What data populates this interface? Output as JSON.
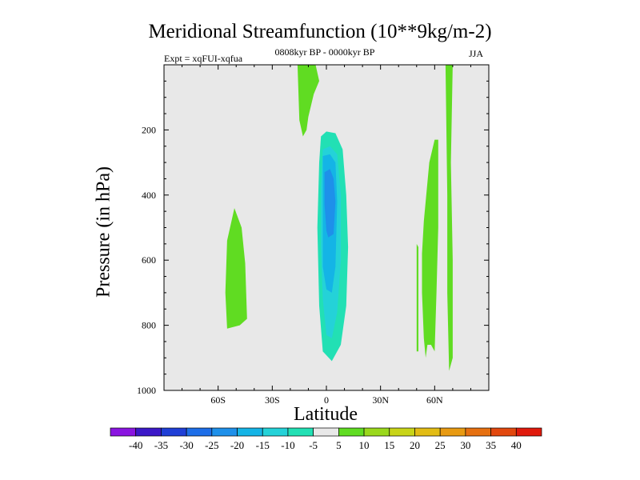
{
  "chart_data": {
    "type": "heatmap",
    "title": "Meridional Streamfunction (10**9kg/m-2)",
    "subtitle": "0808kyr BP - 0000kyr BP",
    "left_label": "Expt = xqFUI-xqfua",
    "right_label": "JJA",
    "xlabel": "Latitude",
    "ylabel": "Pressure (in hPa)",
    "xlim": [
      -90,
      90
    ],
    "ylim": [
      1000,
      0
    ],
    "x_ticks": [
      {
        "value": -60,
        "label": "60S"
      },
      {
        "value": -30,
        "label": "30S"
      },
      {
        "value": 0,
        "label": "0"
      },
      {
        "value": 30,
        "label": "30N"
      },
      {
        "value": 60,
        "label": "60N"
      }
    ],
    "y_ticks": [
      {
        "value": 200,
        "label": "200"
      },
      {
        "value": 400,
        "label": "400"
      },
      {
        "value": 600,
        "label": "600"
      },
      {
        "value": 800,
        "label": "800"
      },
      {
        "value": 1000,
        "label": "1000"
      }
    ],
    "background_color": "#e8e8e8",
    "colorbar": {
      "labels": [
        "-40",
        "-35",
        "-30",
        "-25",
        "-20",
        "-15",
        "-10",
        "-5",
        "5",
        "10",
        "15",
        "20",
        "25",
        "30",
        "35",
        "40"
      ],
      "colors": [
        "#8a14e0",
        "#3c18c8",
        "#1f3fd6",
        "#1d6ee8",
        "#1e90ea",
        "#14b4e6",
        "#24d2d8",
        "#22e0b4",
        "#e8e8e8",
        "#60dc22",
        "#9ad81c",
        "#c8d418",
        "#e2bc14",
        "#e89a12",
        "#e67010",
        "#e2480e",
        "#e01a0c"
      ]
    },
    "regions": [
      {
        "value": -5,
        "points": [
          [
            -82,
            0
          ],
          [
            -77,
            0
          ],
          [
            -76,
            400
          ],
          [
            -75,
            700
          ],
          [
            -76,
            800
          ],
          [
            -79,
            845
          ],
          [
            -81,
            790
          ],
          [
            -82,
            400
          ]
        ]
      },
      {
        "value": -5,
        "points": [
          [
            -70,
            0
          ],
          [
            -68,
            0
          ],
          [
            -68,
            400
          ],
          [
            -67,
            700
          ],
          [
            -68,
            800
          ],
          [
            -69,
            830
          ],
          [
            -70,
            760
          ],
          [
            -70,
            400
          ]
        ]
      },
      {
        "value": -5,
        "points": [
          [
            -64,
            520
          ],
          [
            -63,
            520
          ],
          [
            -63,
            820
          ],
          [
            -64,
            820
          ]
        ]
      },
      {
        "value": 5,
        "points": [
          [
            -55,
            540
          ],
          [
            -51,
            440
          ],
          [
            -47,
            500
          ],
          [
            -45,
            610
          ],
          [
            -44,
            780
          ],
          [
            -48,
            800
          ],
          [
            -55,
            810
          ],
          [
            -56,
            700
          ]
        ]
      },
      {
        "value": -5,
        "points": [
          [
            -31,
            740
          ],
          [
            -29,
            790
          ],
          [
            -30,
            830
          ],
          [
            -32,
            790
          ],
          [
            -33,
            780
          ]
        ]
      },
      {
        "value": 5,
        "points": [
          [
            -16,
            0
          ],
          [
            -6,
            0
          ],
          [
            -4,
            50
          ],
          [
            -7,
            90
          ],
          [
            -10,
            160
          ],
          [
            -11,
            200
          ],
          [
            -13,
            220
          ],
          [
            -15,
            170
          ]
        ]
      },
      {
        "value": -5,
        "points": [
          [
            -4,
            200
          ],
          [
            -2,
            175
          ],
          [
            4,
            175
          ],
          [
            9,
            200
          ],
          [
            12,
            260
          ],
          [
            16,
            400
          ],
          [
            17,
            500
          ],
          [
            18,
            640
          ],
          [
            19,
            760
          ],
          [
            16,
            880
          ],
          [
            10,
            940
          ],
          [
            4,
            960
          ],
          [
            -2,
            955
          ],
          [
            -5,
            920
          ],
          [
            -7,
            820
          ],
          [
            -6,
            600
          ],
          [
            -7,
            330
          ]
        ]
      },
      {
        "value": -10,
        "points": [
          [
            -3,
            220
          ],
          [
            0,
            205
          ],
          [
            5,
            210
          ],
          [
            9,
            260
          ],
          [
            11,
            400
          ],
          [
            12,
            560
          ],
          [
            11,
            740
          ],
          [
            8,
            860
          ],
          [
            3,
            910
          ],
          [
            -2,
            880
          ],
          [
            -4,
            740
          ],
          [
            -5,
            500
          ],
          [
            -4,
            300
          ]
        ]
      },
      {
        "value": -15,
        "points": [
          [
            -2,
            260
          ],
          [
            2,
            250
          ],
          [
            6,
            275
          ],
          [
            8,
            400
          ],
          [
            8,
            600
          ],
          [
            6,
            760
          ],
          [
            3,
            840
          ],
          [
            0,
            830
          ],
          [
            -2,
            720
          ],
          [
            -3,
            560
          ],
          [
            -3,
            380
          ]
        ]
      },
      {
        "value": -20,
        "points": [
          [
            -2,
            280
          ],
          [
            2,
            275
          ],
          [
            5,
            300
          ],
          [
            6,
            420
          ],
          [
            5,
            620
          ],
          [
            3,
            700
          ],
          [
            0,
            690
          ],
          [
            -2,
            620
          ],
          [
            -2,
            420
          ]
        ]
      },
      {
        "value": -25,
        "points": [
          [
            -1,
            330
          ],
          [
            2,
            320
          ],
          [
            4,
            350
          ],
          [
            5,
            420
          ],
          [
            4,
            520
          ],
          [
            1,
            530
          ],
          [
            0,
            510
          ],
          [
            -1,
            430
          ]
        ]
      },
      {
        "value": 5,
        "points": [
          [
            53,
            580
          ],
          [
            54,
            480
          ],
          [
            57,
            300
          ],
          [
            60,
            230
          ],
          [
            62,
            230
          ],
          [
            62,
            500
          ],
          [
            61,
            700
          ],
          [
            60,
            880
          ],
          [
            58,
            860
          ],
          [
            56,
            860
          ],
          [
            55,
            900
          ],
          [
            54,
            840
          ],
          [
            53,
            700
          ]
        ]
      },
      {
        "value": 5,
        "points": [
          [
            50,
            550
          ],
          [
            51,
            560
          ],
          [
            51,
            880
          ],
          [
            50,
            880
          ]
        ]
      },
      {
        "value": 5,
        "points": [
          [
            66,
            0
          ],
          [
            70,
            0
          ],
          [
            69,
            300
          ],
          [
            70,
            600
          ],
          [
            70,
            900
          ],
          [
            68,
            940
          ],
          [
            67,
            700
          ],
          [
            67,
            400
          ]
        ]
      }
    ]
  }
}
